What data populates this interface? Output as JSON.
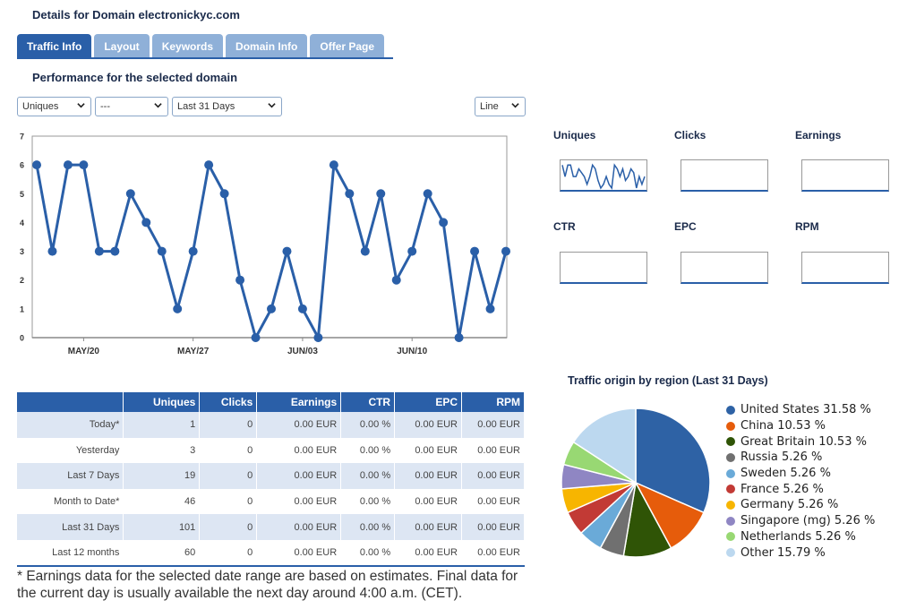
{
  "page_title": "Details for Domain electronickyc.com",
  "tabs": [
    {
      "label": "Traffic Info",
      "active": true
    },
    {
      "label": "Layout",
      "active": false
    },
    {
      "label": "Keywords",
      "active": false
    },
    {
      "label": "Domain Info",
      "active": false
    },
    {
      "label": "Offer Page",
      "active": false
    }
  ],
  "section_title": "Performance for the selected domain",
  "controls": {
    "metric1": "Uniques",
    "metric2": "---",
    "range": "Last 31 Days",
    "chart_type": "Line"
  },
  "chart_data": [
    {
      "type": "line",
      "x_tick_labels": [
        "MAY/20",
        "MAY/27",
        "JUN/03",
        "JUN/10"
      ],
      "x_tick_indices": [
        3,
        10,
        17,
        24
      ],
      "y_ticks": [
        "0",
        "1",
        "2",
        "3",
        "4",
        "5",
        "6",
        "7"
      ],
      "ylim": [
        0,
        7
      ],
      "series": [
        {
          "values": [
            6,
            3,
            6,
            6,
            3,
            3,
            5,
            4,
            3,
            1,
            3,
            6,
            5,
            2,
            0,
            1,
            3,
            1,
            0,
            6,
            5,
            3,
            5,
            2,
            3,
            5,
            4,
            0,
            3,
            1,
            3
          ],
          "color": "#2a5fa8"
        }
      ]
    },
    {
      "type": "pie",
      "title": "Traffic origin by region (Last 31 Days)",
      "slices": [
        {
          "label": "United States 31.58 %",
          "value": 31.58,
          "color": "#2e62a5"
        },
        {
          "label": "China 10.53 %",
          "value": 10.53,
          "color": "#e65c0b"
        },
        {
          "label": "Great Britain 10.53 %",
          "value": 10.53,
          "color": "#2f5406"
        },
        {
          "label": "Russia 5.26 %",
          "value": 5.26,
          "color": "#707070"
        },
        {
          "label": "Sweden 5.26 %",
          "value": 5.26,
          "color": "#6aaad8"
        },
        {
          "label": "France 5.26 %",
          "value": 5.26,
          "color": "#c23a35"
        },
        {
          "label": "Germany 5.26 %",
          "value": 5.26,
          "color": "#f7b500"
        },
        {
          "label": "Singapore (mg) 5.26 %",
          "value": 5.26,
          "color": "#8f86c3"
        },
        {
          "label": "Netherlands 5.26 %",
          "value": 5.26,
          "color": "#98d873"
        },
        {
          "label": "Other 15.79 %",
          "value": 15.79,
          "color": "#bcd8ef"
        }
      ]
    }
  ],
  "mini_charts": {
    "uniques": "Uniques",
    "clicks": "Clicks",
    "earnings": "Earnings",
    "ctr": "CTR",
    "epc": "EPC",
    "rpm": "RPM"
  },
  "table": {
    "headers": [
      "",
      "Uniques",
      "Clicks",
      "Earnings",
      "CTR",
      "EPC",
      "RPM"
    ],
    "rows": [
      [
        "Today*",
        "1",
        "0",
        "0.00 EUR",
        "0.00 %",
        "0.00 EUR",
        "0.00 EUR"
      ],
      [
        "Yesterday",
        "3",
        "0",
        "0.00 EUR",
        "0.00 %",
        "0.00 EUR",
        "0.00 EUR"
      ],
      [
        "Last 7 Days",
        "19",
        "0",
        "0.00 EUR",
        "0.00 %",
        "0.00 EUR",
        "0.00 EUR"
      ],
      [
        "Month to Date*",
        "46",
        "0",
        "0.00 EUR",
        "0.00 %",
        "0.00 EUR",
        "0.00 EUR"
      ],
      [
        "Last 31 Days",
        "101",
        "0",
        "0.00 EUR",
        "0.00 %",
        "0.00 EUR",
        "0.00 EUR"
      ],
      [
        "Last 12 months",
        "60",
        "0",
        "0.00 EUR",
        "0.00 %",
        "0.00 EUR",
        "0.00 EUR"
      ]
    ]
  },
  "footnote": "* Earnings data for the selected date range are based on estimates. Final data for the current day is usually available the next day around 4:00 a.m. (CET)."
}
